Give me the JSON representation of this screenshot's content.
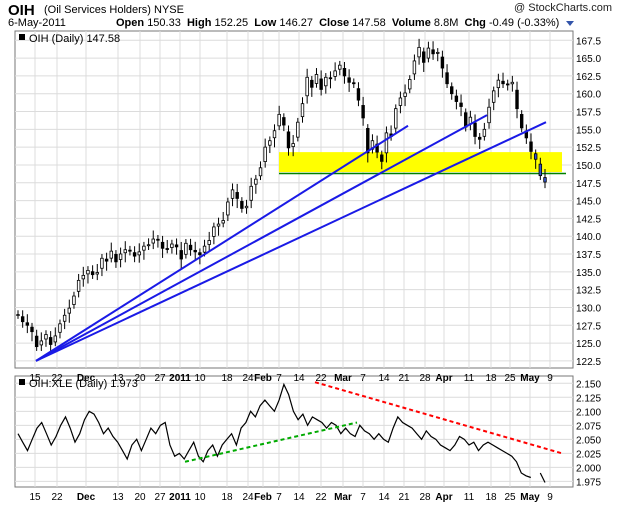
{
  "header": {
    "symbol": "OIH",
    "name": "(Oil Services Holders)",
    "exchange": "NYSE",
    "copyright": "@ StockCharts.com",
    "date": "6-May-2011",
    "open_label": "Open",
    "open": "150.33",
    "high_label": "High",
    "high": "152.25",
    "low_label": "Low",
    "low": "146.27",
    "close_label": "Close",
    "close": "147.58",
    "volume_label": "Volume",
    "volume": "8.8M",
    "chg_label": "Chg",
    "chg": "-0.49 (-0.33%)"
  },
  "colors": {
    "price_candles": "#000000",
    "trendlines": "#1a1ae6",
    "support_zone": "#ffff00",
    "support_line": "#008000",
    "ratio_line": "#000000",
    "ratio_up_trend": "#00aa00",
    "ratio_down_trend": "#ff0000",
    "grid": "#dcdcdc"
  },
  "chart_data": [
    {
      "type": "candlestick",
      "legend": "OIH (Daily) 147.58",
      "x_ticks": [
        "15",
        "22",
        "Dec",
        "13",
        "20",
        "27",
        "2011",
        "10",
        "18",
        "24",
        "Feb",
        "7",
        "14",
        "22",
        "Mar",
        "7",
        "14",
        "21",
        "28",
        "Apr",
        "11",
        "18",
        "25",
        "May",
        "9"
      ],
      "y_ticks": [
        "122.5",
        "125.0",
        "127.5",
        "130.0",
        "132.5",
        "135.0",
        "137.5",
        "140.0",
        "142.5",
        "145.0",
        "147.5",
        "150.0",
        "152.5",
        "155.0",
        "157.5",
        "160.0",
        "162.5",
        "165.0",
        "167.5"
      ],
      "ylim": [
        121.5,
        168.8
      ],
      "grid": true,
      "closes": [
        129.0,
        128.0,
        127.5,
        126.6,
        124.5,
        125.3,
        126.2,
        124.8,
        126.0,
        127.7,
        128.9,
        129.9,
        131.6,
        133.8,
        134.5,
        135.2,
        134.6,
        134.9,
        136.9,
        136.5,
        137.9,
        136.4,
        137.5,
        138.1,
        137.9,
        137.2,
        137.8,
        138.6,
        138.8,
        139.6,
        139.5,
        138.3,
        138.2,
        138.9,
        138.5,
        136.8,
        139.0,
        138.1,
        137.8,
        137.4,
        138.6,
        139.4,
        141.3,
        141.7,
        142.2,
        144.8,
        146.5,
        145.3,
        143.9,
        144.2,
        147.0,
        148.0,
        149.6,
        152.5,
        153.4,
        154.8,
        157.1,
        155.6,
        152.4,
        153.0,
        156.0,
        158.6,
        162.3,
        160.9,
        162.7,
        160.6,
        162.3,
        162.1,
        163.2,
        164.0,
        162.5,
        161.6,
        161.4,
        159.1,
        156.6,
        151.7,
        153.4,
        151.8,
        150.5,
        154.5,
        154.0,
        157.9,
        159.4,
        160.1,
        162.0,
        164.6,
        166.5,
        164.4,
        166.4,
        165.6,
        165.8,
        163.6,
        161.4,
        160.0,
        158.9,
        158.2,
        155.3,
        156.7,
        154.0,
        153.6,
        155.0,
        158.1,
        160.4,
        161.9,
        161.4,
        161.3,
        161.6,
        157.9,
        155.2,
        153.8,
        151.9,
        150.8,
        148.5,
        147.6
      ],
      "trendlines": [
        {
          "from": {
            "x": "Nov 16",
            "y": 122.5
          },
          "to": {
            "x": "Mar 21",
            "y": 155.5
          }
        },
        {
          "from": {
            "x": "Nov 16",
            "y": 122.5
          },
          "to": {
            "x": "Apr 14",
            "y": 157.0
          }
        },
        {
          "from": {
            "x": "Nov 16",
            "y": 122.5
          },
          "to": {
            "x": "May 4",
            "y": 156.0
          }
        }
      ],
      "support_zone": [
        149.0,
        151.8
      ],
      "support_level": 148.8
    },
    {
      "type": "line",
      "legend": "OIH:XLE (Daily) 1.973",
      "x_ticks": [
        "15",
        "22",
        "Dec",
        "13",
        "20",
        "27",
        "2011",
        "10",
        "18",
        "24",
        "Feb",
        "7",
        "14",
        "22",
        "Mar",
        "7",
        "14",
        "21",
        "28",
        "Apr",
        "11",
        "18",
        "25",
        "May",
        "9"
      ],
      "y_ticks": [
        "1.975",
        "2.000",
        "2.025",
        "2.050",
        "2.075",
        "2.100",
        "2.125",
        "2.150"
      ],
      "ylim": [
        1.965,
        2.163
      ],
      "grid": true,
      "values": [
        2.06,
        2.045,
        2.03,
        2.05,
        2.07,
        2.08,
        2.06,
        2.04,
        2.055,
        2.075,
        2.09,
        2.07,
        2.045,
        2.06,
        2.085,
        2.1,
        2.095,
        2.08,
        2.06,
        2.07,
        2.055,
        2.045,
        2.03,
        2.015,
        2.04,
        2.05,
        2.03,
        2.05,
        2.07,
        2.06,
        2.075,
        2.08,
        2.04,
        2.02,
        2.025,
        2.015,
        2.03,
        2.045,
        2.02,
        2.01,
        2.03,
        2.04,
        2.02,
        2.04,
        2.05,
        2.06,
        2.04,
        2.07,
        2.08,
        2.1,
        2.09,
        2.11,
        2.12,
        2.11,
        2.1,
        2.12,
        2.148,
        2.13,
        2.1,
        2.085,
        2.095,
        2.075,
        2.09,
        2.085,
        2.08,
        2.07,
        2.08,
        2.075,
        2.06,
        2.07,
        2.06,
        2.055,
        2.075,
        2.065,
        2.06,
        2.05,
        2.06,
        2.05,
        2.045,
        2.07,
        2.09,
        2.08,
        2.075,
        2.07,
        2.06,
        2.05,
        2.065,
        2.055,
        2.05,
        2.04,
        2.035,
        2.03,
        2.04,
        2.055,
        2.05,
        2.04,
        2.045,
        2.03,
        2.04,
        2.045,
        2.04,
        2.035,
        2.03,
        2.025,
        2.02,
        2.01,
        1.99,
        1.985,
        1.982,
        null,
        1.99,
        1.973
      ],
      "trendlines": [
        {
          "color": "green",
          "from": {
            "x": "Jan 7",
            "y": 2.01
          },
          "to": {
            "x": "Mar 11",
            "y": 2.08
          }
        },
        {
          "color": "red",
          "from": {
            "x": "Feb 22",
            "y": 2.152
          },
          "to": {
            "x": "May 6",
            "y": 2.025
          }
        }
      ]
    }
  ]
}
